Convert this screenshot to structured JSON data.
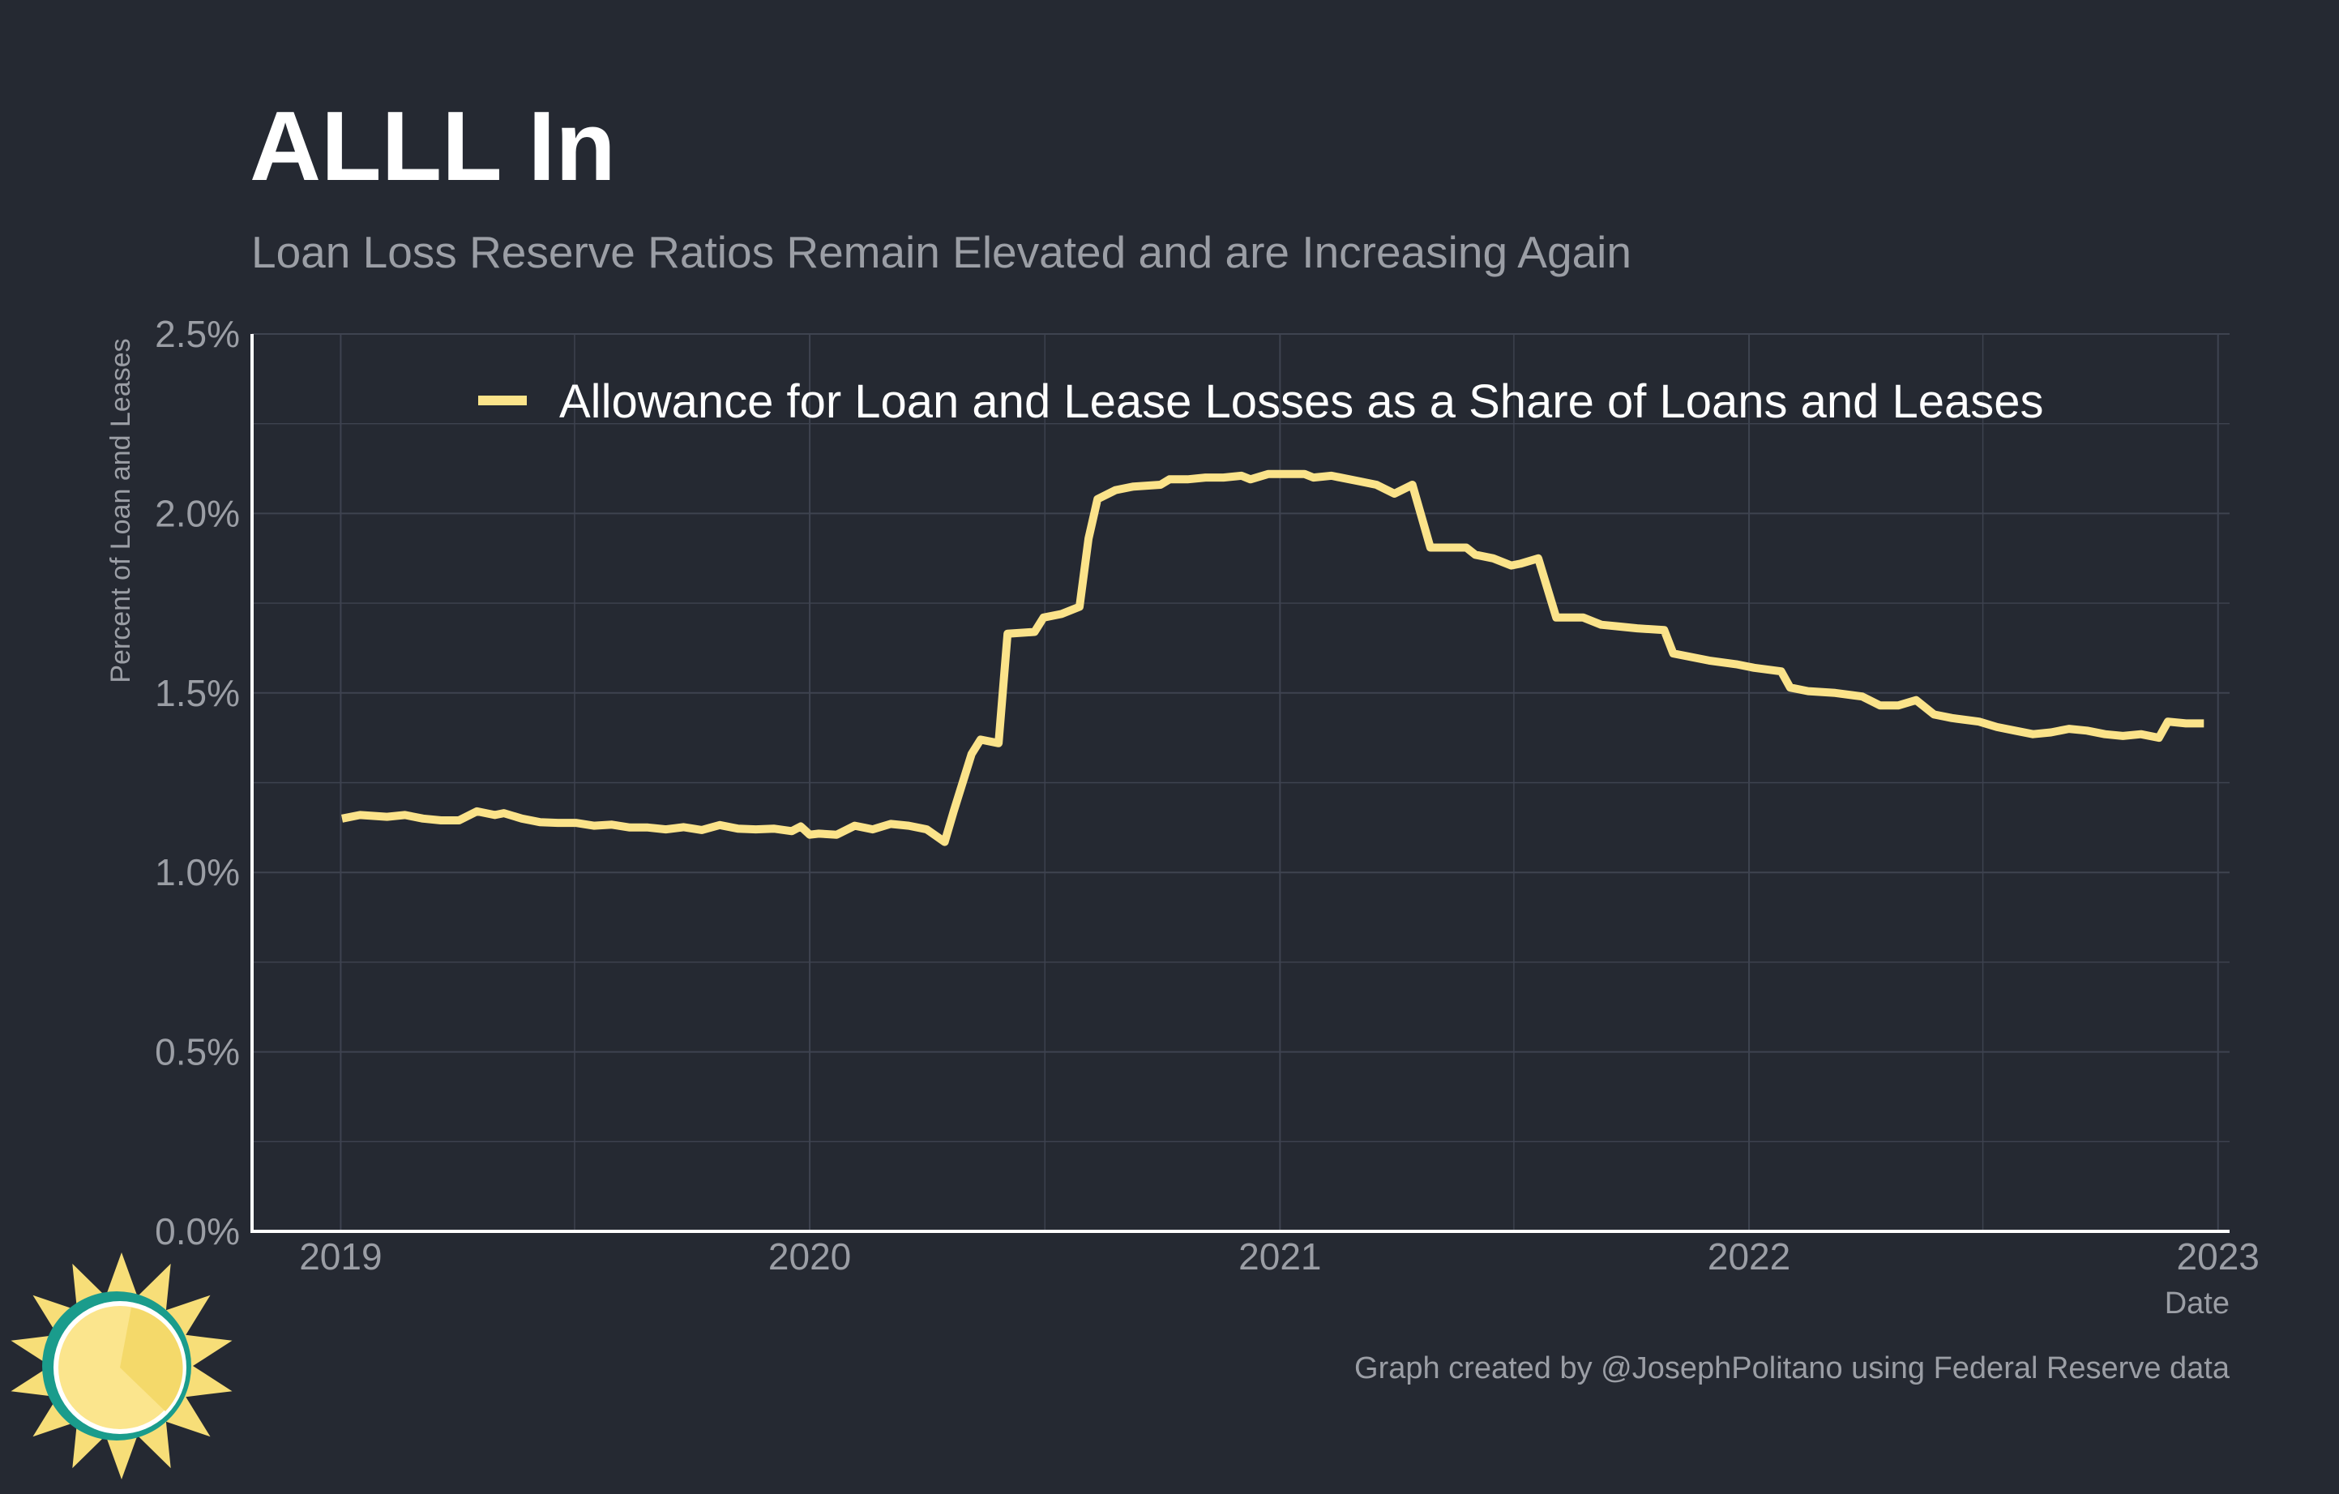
{
  "title": "ALLL In",
  "subtitle": "Loan Loss Reserve Ratios Remain Elevated and are Increasing Again",
  "caption": "Graph created by @JosephPolitano using Federal Reserve data",
  "colors": {
    "background": "#252932",
    "line": "#fbe38a",
    "axis": "#ffffff",
    "grid": "#3e4350",
    "text_muted": "#9b9ea5",
    "logo_teal": "#1a9c8c",
    "logo_yellow": "#f7de78"
  },
  "logo": {
    "name": "sun-logo-icon"
  },
  "chart_data": {
    "type": "line",
    "xlabel": "Date",
    "ylabel": "Percent of Loan and Leases",
    "xlim": [
      "2018-10-24",
      "2023-01-10"
    ],
    "ylim": [
      0,
      2.5
    ],
    "x_ticks": [
      "2019",
      "2020",
      "2021",
      "2022",
      "2023"
    ],
    "y_ticks": [
      "0.0%",
      "0.5%",
      "1.0%",
      "1.5%",
      "2.0%",
      "2.5%"
    ],
    "grid": true,
    "legend_position": "top",
    "series": [
      {
        "name": "Allowance for Loan and Lease Losses as a Share of Loans and Leases",
        "color": "#fbe38a",
        "points": [
          [
            "2019-01-02",
            1.15
          ],
          [
            "2019-01-16",
            1.16
          ],
          [
            "2019-02-06",
            1.155
          ],
          [
            "2019-02-20",
            1.16
          ],
          [
            "2019-03-06",
            1.15
          ],
          [
            "2019-03-20",
            1.145
          ],
          [
            "2019-04-03",
            1.145
          ],
          [
            "2019-04-17",
            1.17
          ],
          [
            "2019-05-01",
            1.16
          ],
          [
            "2019-05-08",
            1.165
          ],
          [
            "2019-05-22",
            1.15
          ],
          [
            "2019-06-05",
            1.14
          ],
          [
            "2019-06-19",
            1.138
          ],
          [
            "2019-07-03",
            1.138
          ],
          [
            "2019-07-17",
            1.13
          ],
          [
            "2019-07-31",
            1.133
          ],
          [
            "2019-08-14",
            1.125
          ],
          [
            "2019-08-28",
            1.125
          ],
          [
            "2019-09-11",
            1.12
          ],
          [
            "2019-09-25",
            1.126
          ],
          [
            "2019-10-09",
            1.118
          ],
          [
            "2019-10-23",
            1.132
          ],
          [
            "2019-11-06",
            1.122
          ],
          [
            "2019-11-20",
            1.12
          ],
          [
            "2019-12-04",
            1.122
          ],
          [
            "2019-12-18",
            1.115
          ],
          [
            "2019-12-25",
            1.128
          ],
          [
            "2020-01-01",
            1.105
          ],
          [
            "2020-01-08",
            1.108
          ],
          [
            "2020-01-22",
            1.105
          ],
          [
            "2020-02-05",
            1.13
          ],
          [
            "2020-02-19",
            1.12
          ],
          [
            "2020-03-04",
            1.135
          ],
          [
            "2020-03-18",
            1.13
          ],
          [
            "2020-04-01",
            1.12
          ],
          [
            "2020-04-15",
            1.085
          ],
          [
            "2020-04-22",
            1.17
          ],
          [
            "2020-05-06",
            1.33
          ],
          [
            "2020-05-13",
            1.37
          ],
          [
            "2020-05-27",
            1.36
          ],
          [
            "2020-06-03",
            1.665
          ],
          [
            "2020-06-24",
            1.67
          ],
          [
            "2020-07-01",
            1.71
          ],
          [
            "2020-07-15",
            1.72
          ],
          [
            "2020-07-29",
            1.74
          ],
          [
            "2020-08-05",
            1.93
          ],
          [
            "2020-08-12",
            2.04
          ],
          [
            "2020-08-26",
            2.065
          ],
          [
            "2020-09-09",
            2.075
          ],
          [
            "2020-09-30",
            2.08
          ],
          [
            "2020-10-07",
            2.095
          ],
          [
            "2020-10-21",
            2.095
          ],
          [
            "2020-11-04",
            2.1
          ],
          [
            "2020-11-18",
            2.1
          ],
          [
            "2020-12-02",
            2.105
          ],
          [
            "2020-12-09",
            2.095
          ],
          [
            "2020-12-23",
            2.11
          ],
          [
            "2021-01-06",
            2.11
          ],
          [
            "2021-01-20",
            2.11
          ],
          [
            "2021-01-27",
            2.1
          ],
          [
            "2021-02-10",
            2.105
          ],
          [
            "2021-03-03",
            2.09
          ],
          [
            "2021-03-17",
            2.08
          ],
          [
            "2021-03-31",
            2.055
          ],
          [
            "2021-04-14",
            2.08
          ],
          [
            "2021-04-28",
            1.905
          ],
          [
            "2021-05-12",
            1.905
          ],
          [
            "2021-05-26",
            1.905
          ],
          [
            "2021-06-02",
            1.885
          ],
          [
            "2021-06-16",
            1.875
          ],
          [
            "2021-06-30",
            1.855
          ],
          [
            "2021-07-07",
            1.86
          ],
          [
            "2021-07-21",
            1.875
          ],
          [
            "2021-08-04",
            1.71
          ],
          [
            "2021-08-25",
            1.71
          ],
          [
            "2021-09-08",
            1.69
          ],
          [
            "2021-09-22",
            1.685
          ],
          [
            "2021-10-06",
            1.68
          ],
          [
            "2021-10-27",
            1.675
          ],
          [
            "2021-11-03",
            1.61
          ],
          [
            "2021-11-17",
            1.6
          ],
          [
            "2021-12-01",
            1.59
          ],
          [
            "2021-12-22",
            1.58
          ],
          [
            "2022-01-05",
            1.57
          ],
          [
            "2022-01-26",
            1.56
          ],
          [
            "2022-02-02",
            1.515
          ],
          [
            "2022-02-16",
            1.505
          ],
          [
            "2022-03-09",
            1.5
          ],
          [
            "2022-03-30",
            1.49
          ],
          [
            "2022-04-13",
            1.465
          ],
          [
            "2022-04-27",
            1.465
          ],
          [
            "2022-05-11",
            1.48
          ],
          [
            "2022-05-25",
            1.44
          ],
          [
            "2022-06-08",
            1.43
          ],
          [
            "2022-06-29",
            1.42
          ],
          [
            "2022-07-13",
            1.405
          ],
          [
            "2022-07-27",
            1.395
          ],
          [
            "2022-08-10",
            1.385
          ],
          [
            "2022-08-24",
            1.39
          ],
          [
            "2022-09-07",
            1.4
          ],
          [
            "2022-09-21",
            1.395
          ],
          [
            "2022-10-05",
            1.385
          ],
          [
            "2022-10-19",
            1.38
          ],
          [
            "2022-11-02",
            1.385
          ],
          [
            "2022-11-16",
            1.375
          ],
          [
            "2022-11-23",
            1.42
          ],
          [
            "2022-12-07",
            1.415
          ],
          [
            "2022-12-21",
            1.415
          ]
        ]
      }
    ]
  }
}
